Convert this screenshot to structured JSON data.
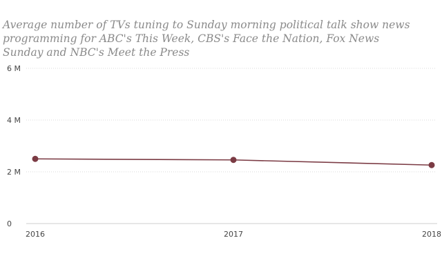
{
  "chart_data": {
    "type": "line",
    "title": "Average number of TVs tuning to Sunday morning political talk show news programming for ABC's This Week, CBS's Face the Nation, Fox News Sunday and NBC's Meet the Press",
    "xlabel": "",
    "ylabel": "",
    "x": [
      "2016",
      "2017",
      "2018"
    ],
    "series": [
      {
        "values": [
          2500000,
          2460000,
          2260000
        ],
        "color": "#7b3b44"
      }
    ],
    "ylim": [
      0,
      6000000
    ],
    "yticks": [
      {
        "value": 0,
        "label": "0"
      },
      {
        "value": 2000000,
        "label": "2 M"
      },
      {
        "value": 4000000,
        "label": "4 M"
      },
      {
        "value": 6000000,
        "label": "6 M"
      }
    ],
    "grid": true,
    "colors": {
      "line": "#7b3b44",
      "grid": "#d9d9d9",
      "axis": "#cccccc",
      "title": "#8a8a8a"
    }
  }
}
